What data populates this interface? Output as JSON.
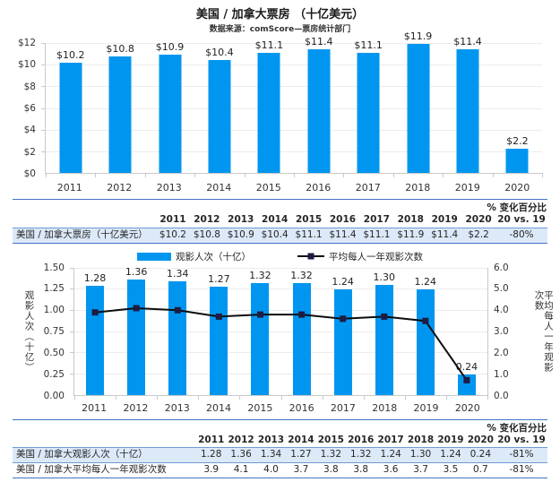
{
  "page": {
    "title": "美国 / 加拿大票房 （十亿美元）",
    "subtitle": "数据来源：comScore—票房统计部门"
  },
  "colors": {
    "bar": "#0096f0",
    "line": "#0d0d0d",
    "marker": "#1f1b42",
    "rule": "#4472c4",
    "highlight": "#dce9f8",
    "grid": "#ececec",
    "axis": "#c9c9c9"
  },
  "chart_data": [
    {
      "type": "bar",
      "title": "美国 / 加拿大票房 （十亿美元）",
      "subtitle": "数据来源：comScore—票房统计部门",
      "categories": [
        "2011",
        "2012",
        "2013",
        "2014",
        "2015",
        "2016",
        "2017",
        "2018",
        "2019",
        "2020"
      ],
      "values": [
        10.2,
        10.8,
        10.9,
        10.4,
        11.1,
        11.4,
        11.1,
        11.9,
        11.4,
        2.2
      ],
      "value_labels": [
        "$10.2",
        "$10.8",
        "$10.9",
        "$10.4",
        "$11.1",
        "$11.4",
        "$11.1",
        "$11.9",
        "$11.4",
        "$2.2"
      ],
      "xlabel": "",
      "ylabel": "",
      "ylim": [
        0,
        12
      ],
      "ytick_labels": [
        "$12",
        "$10",
        "$8",
        "$6",
        "$4",
        "$2",
        "$0"
      ],
      "grid": true,
      "legend": false
    },
    {
      "type": "bar+line",
      "categories": [
        "2011",
        "2012",
        "2013",
        "2014",
        "2015",
        "2016",
        "2017",
        "2018",
        "2019",
        "2020"
      ],
      "series": [
        {
          "name": "观影人次（十亿）",
          "type": "bar",
          "axis": "left",
          "values": [
            1.28,
            1.36,
            1.34,
            1.27,
            1.32,
            1.32,
            1.24,
            1.3,
            1.24,
            0.24
          ],
          "value_labels": [
            "1.28",
            "1.36",
            "1.34",
            "1.27",
            "1.32",
            "1.32",
            "1.24",
            "1.30",
            "1.24",
            "0.24"
          ]
        },
        {
          "name": "平均每人一年观影次数",
          "type": "line",
          "axis": "right",
          "values": [
            3.9,
            4.1,
            4.0,
            3.7,
            3.8,
            3.8,
            3.6,
            3.7,
            3.5,
            0.7
          ]
        }
      ],
      "left_axis": {
        "label": "观影人次（十亿）",
        "min": 0,
        "max": 1.5,
        "tick_labels": [
          "1.50",
          "1.25",
          "1.00",
          "0.75",
          "0.50",
          "0.25",
          "0.00"
        ]
      },
      "right_axis": {
        "label": "平均每人一年观影次数",
        "min": 0,
        "max": 6,
        "tick_labels": [
          "6.0",
          "5.0",
          "4.0",
          "3.0",
          "2.0",
          "1.0",
          "0.0"
        ]
      },
      "legend_position": "top",
      "grid": true
    }
  ],
  "tables": [
    {
      "header_note": "% 变化百分比",
      "columns": [
        "2011",
        "2012",
        "2013",
        "2014",
        "2015",
        "2016",
        "2017",
        "2018",
        "2019",
        "2020",
        "20 vs. 19"
      ],
      "rows": [
        {
          "label": "美国 / 加拿大票房（十亿美元）",
          "highlight": true,
          "values": [
            "$10.2",
            "$10.8",
            "$10.9",
            "$10.4",
            "$11.1",
            "$11.4",
            "$11.1",
            "$11.9",
            "$11.4",
            "$2.2",
            "-80%"
          ]
        }
      ]
    },
    {
      "header_note": "% 变化百分比",
      "columns": [
        "2011",
        "2012",
        "2013",
        "2014",
        "2015",
        "2016",
        "2017",
        "2018",
        "2019",
        "2020",
        "20 vs. 19"
      ],
      "rows": [
        {
          "label": "美国 / 加拿大观影人次（十亿）",
          "highlight": true,
          "values": [
            "1.28",
            "1.36",
            "1.34",
            "1.27",
            "1.32",
            "1.32",
            "1.24",
            "1.30",
            "1.24",
            "0.24",
            "-81%"
          ]
        },
        {
          "label": "美国 / 加拿大平均每人一年观影次数",
          "highlight": false,
          "values": [
            "3.9",
            "4.1",
            "4.0",
            "3.7",
            "3.8",
            "3.8",
            "3.6",
            "3.7",
            "3.5",
            "0.7",
            "-81%"
          ]
        }
      ]
    }
  ]
}
